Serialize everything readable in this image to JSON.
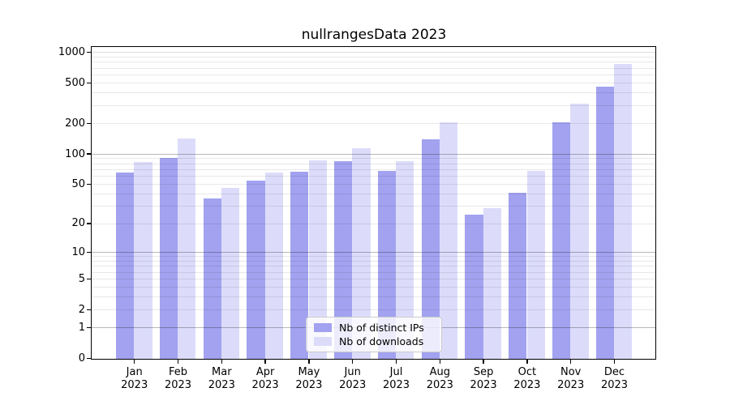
{
  "figure": {
    "title": "nullrangesData 2023"
  },
  "chart_data": {
    "type": "bar",
    "title": "nullrangesData 2023",
    "categories": [
      "Jan",
      "Feb",
      "Mar",
      "Apr",
      "May",
      "Jun",
      "Jul",
      "Aug",
      "Sep",
      "Oct",
      "Nov",
      "Dec"
    ],
    "year": "2023",
    "series": [
      {
        "name": "Nb of distinct IPs",
        "color": "#a2a2f0",
        "values": [
          66,
          92,
          36,
          55,
          67,
          85,
          68,
          141,
          25,
          41,
          205,
          460
        ]
      },
      {
        "name": "Nb of downloads",
        "color": "#dcdcfa",
        "values": [
          83,
          143,
          46,
          66,
          87,
          114,
          86,
          205,
          29,
          68,
          316,
          766
        ]
      }
    ],
    "xlabel": "",
    "ylabel": "",
    "y_scale": "log1p",
    "ylim": [
      0,
      1100
    ],
    "y_ticks": [
      {
        "label": "0",
        "value": 0
      },
      {
        "label": "1",
        "value": 1
      },
      {
        "label": "2",
        "value": 2
      },
      {
        "label": "5",
        "value": 5
      },
      {
        "label": "10",
        "value": 10
      },
      {
        "label": "20",
        "value": 20
      },
      {
        "label": "50",
        "value": 50
      },
      {
        "label": "100",
        "value": 100
      },
      {
        "label": "200",
        "value": 200
      },
      {
        "label": "500",
        "value": 500
      },
      {
        "label": "1000",
        "value": 1000
      }
    ],
    "minor_grid_values": [
      3,
      4,
      6,
      7,
      8,
      9,
      30,
      40,
      60,
      70,
      80,
      90,
      300,
      400,
      600,
      700,
      800,
      900
    ],
    "emphasized_grid_values": [
      1,
      10,
      100
    ],
    "grid": true,
    "legend_position": "lower center"
  },
  "colors": {
    "bar_distinct_ips": "#a2a2f0",
    "bar_downloads": "#dcdcfa",
    "frame": "#000000",
    "grid_minor": "rgba(0,0,0,0.09)",
    "grid_major": "rgba(0,0,0,0.13)",
    "grid_emphasized": "rgba(0,0,0,0.28)",
    "legend_border": "#cccccc",
    "legend_background": "rgba(255,255,255,0.8)",
    "text": "#000000"
  }
}
